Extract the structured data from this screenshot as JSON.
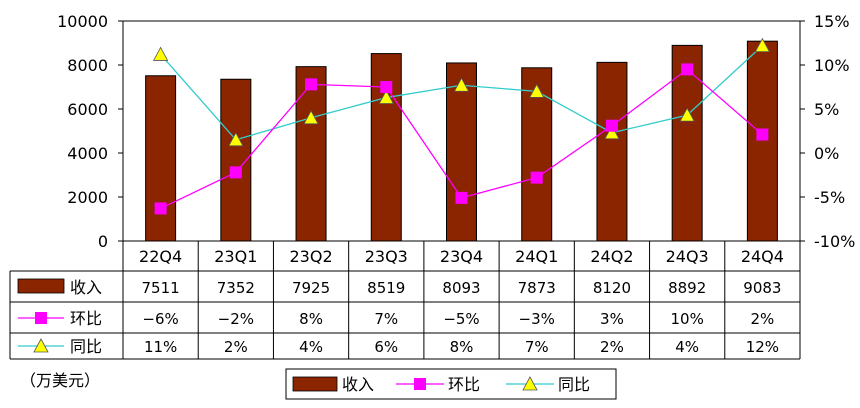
{
  "chart_data": {
    "type": "bar",
    "categories": [
      "22Q4",
      "23Q1",
      "23Q2",
      "23Q3",
      "23Q4",
      "24Q1",
      "24Q2",
      "24Q3",
      "24Q4"
    ],
    "series": [
      {
        "name": "收入",
        "kind": "bar",
        "axis": "left",
        "color": "#8B2500",
        "values": [
          7511,
          7352,
          7925,
          8519,
          8093,
          7873,
          8120,
          8892,
          9083
        ]
      },
      {
        "name": "环比",
        "kind": "line",
        "axis": "right",
        "color": "#FF00FF",
        "marker": "square",
        "values": [
          -6,
          -2,
          8,
          7,
          -5,
          -3,
          3,
          10,
          2
        ]
      },
      {
        "name": "同比",
        "kind": "line",
        "axis": "right",
        "color": "#33CCCC",
        "marker": "triangle",
        "marker_color": "#FFFF00",
        "values": [
          11,
          2,
          4,
          6,
          8,
          7,
          2,
          4,
          12
        ]
      }
    ],
    "plot_points": {
      "环比": [
        -6.3,
        -2.2,
        7.8,
        7.5,
        -5.1,
        -2.8,
        3.1,
        9.5,
        2.1
      ],
      "同比": [
        11.2,
        1.5,
        4.0,
        6.3,
        7.7,
        7.0,
        2.3,
        4.3,
        12.2
      ]
    },
    "table": {
      "row_labels": [
        "收入",
        "环比",
        "同比"
      ],
      "rows": [
        [
          "7511",
          "7352",
          "7925",
          "8519",
          "8093",
          "7873",
          "8120",
          "8892",
          "9083"
        ],
        [
          "−6%",
          "−2%",
          "8%",
          "7%",
          "−5%",
          "−3%",
          "3%",
          "10%",
          "2%"
        ],
        [
          "11%",
          "2%",
          "4%",
          "6%",
          "8%",
          "7%",
          "2%",
          "4%",
          "12%"
        ]
      ]
    },
    "left_axis": {
      "ylim": [
        0,
        10000
      ],
      "ticks": [
        "0",
        "2000",
        "4000",
        "6000",
        "8000",
        "10000"
      ]
    },
    "right_axis": {
      "ylim": [
        -10,
        15
      ],
      "ticks": [
        "-10%",
        "-5%",
        "0%",
        "5%",
        "10%",
        "15%"
      ]
    },
    "unit_note": "（万美元）",
    "legend": {
      "position": "bottom",
      "items": [
        "收入",
        "环比",
        "同比"
      ]
    },
    "grid": false
  }
}
